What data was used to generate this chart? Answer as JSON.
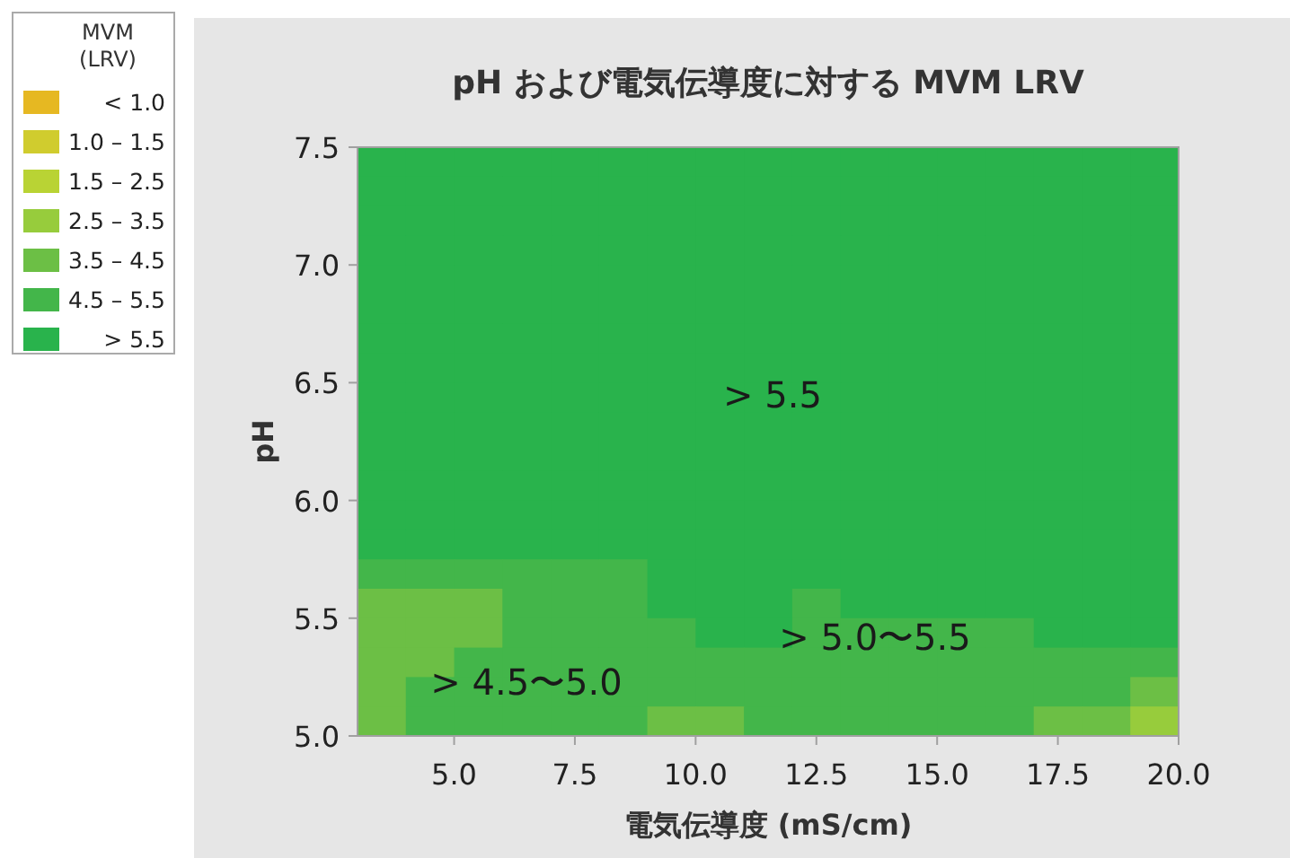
{
  "chart_data": {
    "type": "heatmap",
    "title": "pH および電気伝導度に対する MVM LRV",
    "xlabel": "電気伝導度 (mS/cm)",
    "ylabel": "pH",
    "clabel": "MVM\n(LRV)",
    "xlim": [
      3,
      20
    ],
    "ylim": [
      5,
      7.5
    ],
    "xticks": [
      {
        "value": 5,
        "label": "5.0"
      },
      {
        "value": 7.5,
        "label": "7.5"
      },
      {
        "value": 10,
        "label": "10.0"
      },
      {
        "value": 12.5,
        "label": "12.5"
      },
      {
        "value": 15,
        "label": "15.0"
      },
      {
        "value": 17.5,
        "label": "17.5"
      },
      {
        "value": 20,
        "label": "20.0"
      }
    ],
    "yticks": [
      {
        "value": 5,
        "label": "5.0"
      },
      {
        "value": 5.5,
        "label": "5.5"
      },
      {
        "value": 6,
        "label": "6.0"
      },
      {
        "value": 6.5,
        "label": "6.5"
      },
      {
        "value": 7,
        "label": "7.0"
      },
      {
        "value": 7.5,
        "label": "7.5"
      }
    ],
    "clim": [
      -0.5,
      6.5
    ],
    "cticks": [
      {
        "value": 0,
        "label": "< 1.0"
      },
      {
        "value": 1,
        "label": "1.0 – 1.5"
      },
      {
        "value": 2,
        "label": "1.5 – 2.5"
      },
      {
        "value": 3,
        "label": "2.5 – 3.5"
      },
      {
        "value": 4,
        "label": "3.5 – 4.5"
      },
      {
        "value": 5,
        "label": "4.5 – 5.5"
      },
      {
        "value": 6,
        "label": "> 5.5"
      }
    ],
    "colors": [
      "#e6b822",
      "#d0cc2e",
      "#b9d334",
      "#97cc3c",
      "#6cbf45",
      "#43b64a",
      "#29b34c"
    ],
    "cells": [
      [
        6,
        6,
        6,
        6,
        6,
        6,
        6,
        6,
        6,
        6,
        6,
        6,
        6,
        6,
        6,
        6,
        6
      ],
      [
        6,
        6,
        6,
        6,
        6,
        6,
        6,
        6,
        6,
        6,
        6,
        6,
        6,
        6,
        6,
        6,
        6
      ],
      [
        6,
        6,
        6,
        6,
        6,
        6,
        6,
        6,
        6,
        6,
        6,
        6,
        6,
        6,
        6,
        6,
        6
      ],
      [
        6,
        6,
        6,
        6,
        6,
        6,
        6,
        6,
        6,
        6,
        6,
        6,
        6,
        6,
        6,
        6,
        6
      ],
      [
        6,
        6,
        6,
        6,
        6,
        6,
        6,
        6,
        6,
        6,
        6,
        6,
        6,
        6,
        6,
        6,
        6
      ],
      [
        6,
        6,
        6,
        6,
        6,
        6,
        6,
        6,
        6,
        6,
        6,
        6,
        6,
        6,
        6,
        6,
        6
      ],
      [
        6,
        6,
        6,
        6,
        6,
        6,
        6,
        6,
        6,
        6,
        6,
        6,
        6,
        6,
        6,
        6,
        6
      ],
      [
        6,
        6,
        6,
        6,
        6,
        6,
        6,
        6,
        6,
        6,
        6,
        6,
        6,
        6,
        6,
        6,
        6
      ],
      [
        6,
        6,
        6,
        6,
        6,
        6,
        6,
        6,
        6,
        6,
        6,
        6,
        6,
        6,
        6,
        6,
        6
      ],
      [
        6,
        6,
        6,
        6,
        6,
        6,
        6,
        6,
        6,
        6,
        6,
        6,
        6,
        6,
        6,
        6,
        6
      ],
      [
        6,
        6,
        6,
        6,
        6,
        6,
        6,
        6,
        6,
        6,
        6,
        6,
        6,
        6,
        6,
        6,
        6
      ],
      [
        6,
        6,
        6,
        6,
        6,
        6,
        6,
        6,
        6,
        6,
        6,
        6,
        6,
        6,
        6,
        6,
        6
      ],
      [
        6,
        6,
        6,
        6,
        6,
        6,
        6,
        6,
        6,
        6,
        6,
        6,
        6,
        6,
        6,
        6,
        6
      ],
      [
        6,
        6,
        6,
        6,
        6,
        6,
        6,
        6,
        6,
        6,
        6,
        6,
        6,
        6,
        6,
        6,
        6
      ],
      [
        5,
        5,
        5,
        5,
        5,
        5,
        6,
        6,
        6,
        6,
        6,
        6,
        6,
        6,
        6,
        6,
        6
      ],
      [
        4,
        4,
        4,
        5,
        5,
        5,
        6,
        6,
        6,
        5,
        6,
        6,
        6,
        6,
        6,
        6,
        6
      ],
      [
        4,
        4,
        4,
        5,
        5,
        5,
        5,
        6,
        6,
        5,
        5,
        5,
        5,
        5,
        6,
        6,
        6
      ],
      [
        4,
        4,
        5,
        5,
        5,
        5,
        5,
        5,
        5,
        5,
        5,
        5,
        5,
        5,
        5,
        5,
        5
      ],
      [
        4,
        5,
        5,
        5,
        5,
        5,
        5,
        5,
        5,
        5,
        5,
        5,
        5,
        5,
        5,
        5,
        4
      ],
      [
        4,
        5,
        5,
        5,
        5,
        5,
        4,
        4,
        5,
        5,
        5,
        5,
        5,
        5,
        4,
        4,
        3
      ]
    ],
    "annotations": [
      "> 5.5",
      "> 4.5〜5.0",
      "> 5.0〜5.5"
    ]
  }
}
